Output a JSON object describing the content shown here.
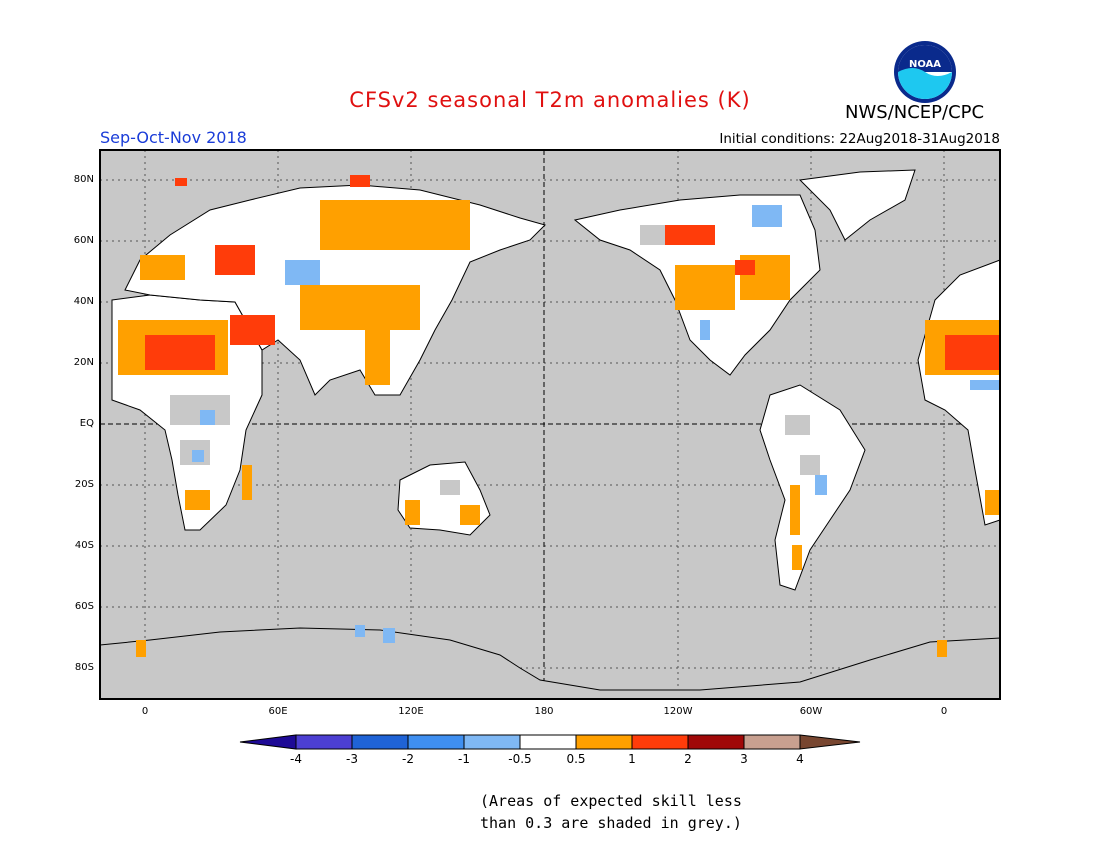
{
  "header": {
    "title": "CFSv2 seasonal T2m anomalies (K)",
    "org": "NWS/NCEP/CPC",
    "season": "Sep-Oct-Nov 2018",
    "initial_conditions": "Initial conditions: 22Aug2018-31Aug2018",
    "logo_text": "NOAA"
  },
  "map": {
    "lat_labels": [
      "80N",
      "60N",
      "40N",
      "20N",
      "EQ",
      "20S",
      "40S",
      "60S",
      "80S"
    ],
    "lon_labels": [
      "0",
      "60E",
      "120E",
      "180",
      "120W",
      "60W",
      "0"
    ],
    "background_color": "#c8c8c8"
  },
  "colorbar": {
    "labels": [
      "-4",
      "-3",
      "-2",
      "-1",
      "-0.5",
      "0.5",
      "1",
      "2",
      "3",
      "4"
    ],
    "colors": [
      "#1e0a96",
      "#4c3fd2",
      "#1f63d6",
      "#3f8ff0",
      "#7fb8f4",
      "#ffffff",
      "#ffa000",
      "#ff3c0a",
      "#a00808",
      "#c8a090",
      "#784630"
    ]
  },
  "footnote": {
    "line1": "(Areas of expected skill less",
    "line2": "than 0.3 are shaded in grey.)"
  }
}
